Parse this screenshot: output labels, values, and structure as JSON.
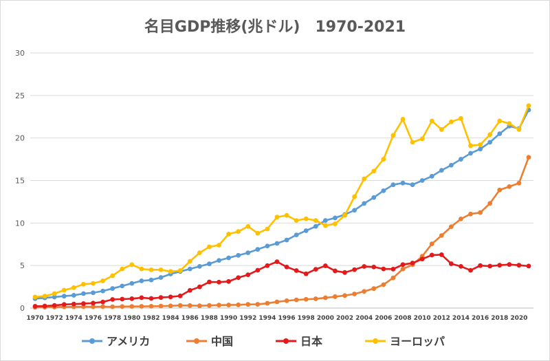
{
  "chart_data": {
    "type": "line",
    "title": "名目GDP推移(兆ドル)　1970-2021",
    "xlabel": "",
    "ylabel": "",
    "ylim": [
      0,
      30
    ],
    "yticks": [
      0,
      5,
      10,
      15,
      20,
      25,
      30
    ],
    "x": [
      1970,
      1971,
      1972,
      1973,
      1974,
      1975,
      1976,
      1977,
      1978,
      1979,
      1980,
      1981,
      1982,
      1983,
      1984,
      1985,
      1986,
      1987,
      1988,
      1989,
      1990,
      1991,
      1992,
      1993,
      1994,
      1995,
      1996,
      1997,
      1998,
      1999,
      2000,
      2001,
      2002,
      2003,
      2004,
      2005,
      2006,
      2007,
      2008,
      2009,
      2010,
      2011,
      2012,
      2013,
      2014,
      2015,
      2016,
      2017,
      2018,
      2019,
      2020,
      2021
    ],
    "xtick_labels": [
      "1970",
      "1972",
      "1974",
      "1976",
      "1978",
      "1980",
      "1982",
      "1984",
      "1986",
      "1988",
      "1990",
      "1992",
      "1994",
      "1996",
      "1998",
      "2000",
      "2002",
      "2004",
      "2006",
      "2008",
      "2010",
      "2012",
      "2014",
      "2016",
      "2018",
      "2020"
    ],
    "grid": true,
    "legend_position": "bottom",
    "series": [
      {
        "name": "アメリカ",
        "color": "#5b9bd5",
        "values": [
          1.1,
          1.2,
          1.3,
          1.4,
          1.5,
          1.7,
          1.8,
          2.0,
          2.3,
          2.6,
          2.9,
          3.2,
          3.3,
          3.6,
          4.0,
          4.3,
          4.6,
          4.9,
          5.2,
          5.6,
          5.9,
          6.2,
          6.5,
          6.9,
          7.3,
          7.6,
          8.0,
          8.6,
          9.1,
          9.6,
          10.3,
          10.6,
          11.0,
          11.5,
          12.3,
          13.0,
          13.8,
          14.5,
          14.7,
          14.5,
          15.0,
          15.5,
          16.2,
          16.8,
          17.5,
          18.2,
          18.7,
          19.5,
          20.5,
          21.4,
          21.1,
          23.3
        ]
      },
      {
        "name": "中国",
        "color": "#ed7d31",
        "values": [
          0.09,
          0.1,
          0.11,
          0.14,
          0.14,
          0.16,
          0.15,
          0.17,
          0.15,
          0.18,
          0.19,
          0.2,
          0.21,
          0.23,
          0.26,
          0.31,
          0.3,
          0.27,
          0.31,
          0.35,
          0.36,
          0.38,
          0.43,
          0.44,
          0.56,
          0.73,
          0.86,
          0.96,
          1.03,
          1.09,
          1.21,
          1.34,
          1.47,
          1.66,
          1.96,
          2.29,
          2.75,
          3.55,
          4.59,
          5.1,
          6.09,
          7.55,
          8.53,
          9.57,
          10.48,
          11.06,
          11.23,
          12.31,
          13.89,
          14.28,
          14.69,
          17.73
        ]
      },
      {
        "name": "日本",
        "color": "#e31a1c",
        "values": [
          0.21,
          0.24,
          0.31,
          0.42,
          0.47,
          0.52,
          0.58,
          0.72,
          1.01,
          1.05,
          1.1,
          1.22,
          1.13,
          1.24,
          1.31,
          1.43,
          2.08,
          2.49,
          3.07,
          3.05,
          3.13,
          3.58,
          3.91,
          4.45,
          4.99,
          5.45,
          4.83,
          4.41,
          4.03,
          4.56,
          4.97,
          4.37,
          4.18,
          4.52,
          4.89,
          4.83,
          4.6,
          4.58,
          5.11,
          5.29,
          5.76,
          6.23,
          6.27,
          5.21,
          4.9,
          4.44,
          5.0,
          4.93,
          5.04,
          5.12,
          5.04,
          4.94
        ]
      },
      {
        "name": "ヨーロッパ",
        "color": "#ffc000",
        "values": [
          1.3,
          1.4,
          1.7,
          2.1,
          2.4,
          2.8,
          2.9,
          3.2,
          3.8,
          4.6,
          5.1,
          4.6,
          4.5,
          4.5,
          4.3,
          4.4,
          5.5,
          6.5,
          7.2,
          7.4,
          8.7,
          9.0,
          9.6,
          8.8,
          9.3,
          10.7,
          10.9,
          10.3,
          10.5,
          10.3,
          9.7,
          9.9,
          10.9,
          13.1,
          15.2,
          16.1,
          17.5,
          20.3,
          22.2,
          19.5,
          19.9,
          22.0,
          21.0,
          21.9,
          22.3,
          19.1,
          19.2,
          20.4,
          22.0,
          21.7,
          21.0,
          23.8
        ]
      }
    ]
  }
}
